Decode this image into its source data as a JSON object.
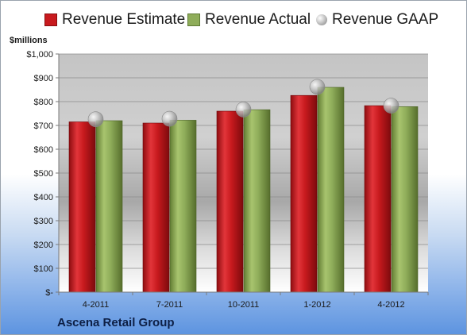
{
  "chart_data": {
    "type": "bar",
    "title": "",
    "xlabel": "",
    "ylabel": "$millions",
    "categories": [
      "4-2011",
      "7-2011",
      "10-2011",
      "1-2012",
      "4-2012"
    ],
    "series": [
      {
        "name": "Revenue Estimate",
        "type": "bar",
        "color": "#c81a1e",
        "values": [
          715,
          710,
          760,
          826,
          783
        ]
      },
      {
        "name": "Revenue Actual",
        "type": "bar",
        "color": "#8fad5a",
        "values": [
          720,
          722,
          766,
          860,
          779
        ]
      },
      {
        "name": "Revenue GAAP",
        "type": "marker",
        "color": "#b8b8b8",
        "values": [
          726,
          728,
          767,
          862,
          783
        ]
      }
    ],
    "ylim": [
      0,
      1000
    ],
    "y_ticks": [
      0,
      100,
      200,
      300,
      400,
      500,
      600,
      700,
      800,
      900,
      1000
    ],
    "y_tick_labels": [
      "$-",
      "$100",
      "$200",
      "$300",
      "$400",
      "$500",
      "$600",
      "$700",
      "$800",
      "$900",
      "$1,000"
    ],
    "grid": true,
    "legend_position": "top"
  },
  "legend": {
    "estimate": "Revenue Estimate",
    "actual": "Revenue Actual",
    "gaap": "Revenue GAAP"
  },
  "unit_label": "$millions",
  "company": "Ascena Retail Group"
}
